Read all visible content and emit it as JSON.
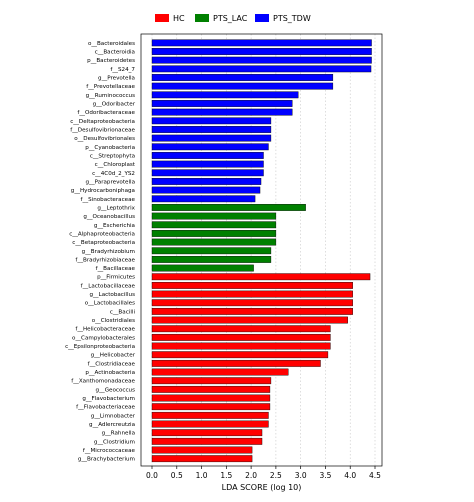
{
  "chart_data": {
    "type": "bar",
    "orientation": "horizontal",
    "xlabel": "LDA SCORE (log 10)",
    "xlim": [
      0,
      4.5
    ],
    "xticks": [
      "0.0",
      "0.5",
      "1.0",
      "1.5",
      "2.0",
      "2.5",
      "3.0",
      "3.5",
      "4.0",
      "4.5"
    ],
    "grid": "vertical dotted",
    "legend_position": "top",
    "legend": [
      {
        "name": "HC",
        "color": "#ff0000"
      },
      {
        "name": "PTS_LAC",
        "color": "#008000"
      },
      {
        "name": "PTS_TDW",
        "color": "#0000ff"
      }
    ],
    "bars": [
      {
        "label": "o__Bacteroidales",
        "value": 4.43,
        "group": "PTS_TDW"
      },
      {
        "label": "c__Bacteroidia",
        "value": 4.43,
        "group": "PTS_TDW"
      },
      {
        "label": "p__Bacteroidetes",
        "value": 4.43,
        "group": "PTS_TDW"
      },
      {
        "label": "f__S24_7",
        "value": 4.42,
        "group": "PTS_TDW"
      },
      {
        "label": "g__Prevotella",
        "value": 3.65,
        "group": "PTS_TDW"
      },
      {
        "label": "f__Prevotellaceae",
        "value": 3.65,
        "group": "PTS_TDW"
      },
      {
        "label": "g__Ruminococcus",
        "value": 2.95,
        "group": "PTS_TDW"
      },
      {
        "label": "g__Odoribacter",
        "value": 2.83,
        "group": "PTS_TDW"
      },
      {
        "label": "f__Odoribacteraceae",
        "value": 2.83,
        "group": "PTS_TDW"
      },
      {
        "label": "c__Deltaproteobacteria",
        "value": 2.4,
        "group": "PTS_TDW"
      },
      {
        "label": "f__Desulfovibrionaceae",
        "value": 2.4,
        "group": "PTS_TDW"
      },
      {
        "label": "o__Desulfovibrionales",
        "value": 2.4,
        "group": "PTS_TDW"
      },
      {
        "label": "p__Cyanobacteria",
        "value": 2.35,
        "group": "PTS_TDW"
      },
      {
        "label": "c__Streptophyta",
        "value": 2.25,
        "group": "PTS_TDW"
      },
      {
        "label": "c__Chloroplast",
        "value": 2.25,
        "group": "PTS_TDW"
      },
      {
        "label": "c__4C0d_2_YS2",
        "value": 2.25,
        "group": "PTS_TDW"
      },
      {
        "label": "g__Paraprevotella",
        "value": 2.2,
        "group": "PTS_TDW"
      },
      {
        "label": "g__Hydrocarboniphaga",
        "value": 2.18,
        "group": "PTS_TDW"
      },
      {
        "label": "f__Sinobacteraceae",
        "value": 2.08,
        "group": "PTS_TDW"
      },
      {
        "label": "g__Leptothrix",
        "value": 3.1,
        "group": "PTS_LAC"
      },
      {
        "label": "g__Oceanobacillus",
        "value": 2.5,
        "group": "PTS_LAC"
      },
      {
        "label": "g__Escherichia",
        "value": 2.5,
        "group": "PTS_LAC"
      },
      {
        "label": "c__Alphaproteobacteria",
        "value": 2.5,
        "group": "PTS_LAC"
      },
      {
        "label": "c__Betaproteobacteria",
        "value": 2.5,
        "group": "PTS_LAC"
      },
      {
        "label": "g__Bradyrhizobium",
        "value": 2.4,
        "group": "PTS_LAC"
      },
      {
        "label": "f__Bradyrhizobiaceae",
        "value": 2.4,
        "group": "PTS_LAC"
      },
      {
        "label": "f__Bacillaceae",
        "value": 2.05,
        "group": "PTS_LAC"
      },
      {
        "label": "p__Firmicutes",
        "value": 4.4,
        "group": "HC"
      },
      {
        "label": "f__Lactobacillaceae",
        "value": 4.05,
        "group": "HC"
      },
      {
        "label": "g__Lactobacillus",
        "value": 4.05,
        "group": "HC"
      },
      {
        "label": "o__Lactobacillales",
        "value": 4.05,
        "group": "HC"
      },
      {
        "label": "c__Bacilli",
        "value": 4.05,
        "group": "HC"
      },
      {
        "label": "o__Clostridiales",
        "value": 3.95,
        "group": "HC"
      },
      {
        "label": "f__Helicobacteraceae",
        "value": 3.6,
        "group": "HC"
      },
      {
        "label": "o__Campylobacterales",
        "value": 3.6,
        "group": "HC"
      },
      {
        "label": "c__Epsilonproteobacteria",
        "value": 3.6,
        "group": "HC"
      },
      {
        "label": "g__Helicobacter",
        "value": 3.55,
        "group": "HC"
      },
      {
        "label": "f__Clostridiaceae",
        "value": 3.4,
        "group": "HC"
      },
      {
        "label": "p__Actinobacteria",
        "value": 2.75,
        "group": "HC"
      },
      {
        "label": "f__Xanthomonadaceae",
        "value": 2.4,
        "group": "HC"
      },
      {
        "label": "g__Geococcus",
        "value": 2.38,
        "group": "HC"
      },
      {
        "label": "g__Flavobacterium",
        "value": 2.38,
        "group": "HC"
      },
      {
        "label": "f__Flavobacteriaceae",
        "value": 2.38,
        "group": "HC"
      },
      {
        "label": "g__Limnobacter",
        "value": 2.35,
        "group": "HC"
      },
      {
        "label": "g__Adlercreutzia",
        "value": 2.35,
        "group": "HC"
      },
      {
        "label": "g__Rahnella",
        "value": 2.22,
        "group": "HC"
      },
      {
        "label": "g__Clostridium",
        "value": 2.22,
        "group": "HC"
      },
      {
        "label": "f__Micrococcaceae",
        "value": 2.02,
        "group": "HC"
      },
      {
        "label": "g__Brachybacterium",
        "value": 2.02,
        "group": "HC"
      }
    ]
  }
}
